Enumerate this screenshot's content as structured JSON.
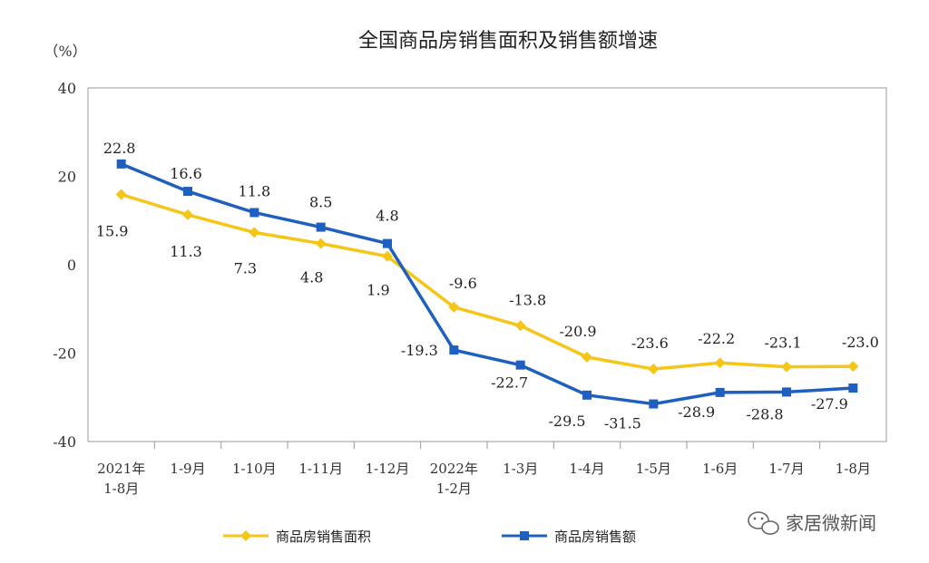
{
  "chart_data": {
    "type": "line",
    "title": "全国商品房销售面积及销售额增速",
    "ylabel": "（%）",
    "ylim": [
      -40,
      40
    ],
    "yticks": [
      40,
      20,
      0,
      -20,
      -40
    ],
    "categories": [
      [
        "2021年",
        "1-8月"
      ],
      [
        "1-9月"
      ],
      [
        "1-10月"
      ],
      [
        "1-11月"
      ],
      [
        "1-12月"
      ],
      [
        "2022年",
        "1-2月"
      ],
      [
        "1-3月"
      ],
      [
        "1-4月"
      ],
      [
        "1-5月"
      ],
      [
        "1-6月"
      ],
      [
        "1-7月"
      ],
      [
        "1-8月"
      ]
    ],
    "series": [
      {
        "name": "商品房销售面积",
        "color": "#F5C518",
        "marker": "diamond",
        "values": [
          15.9,
          11.3,
          7.3,
          4.8,
          1.9,
          -9.6,
          -13.8,
          -20.9,
          -23.6,
          -22.2,
          -23.1,
          -23.0
        ],
        "labels": [
          "15.9",
          "11.3",
          "7.3",
          "4.8",
          "1.9",
          "-9.6",
          "-13.8",
          "-20.9",
          "-23.6",
          "-22.2",
          "-23.1",
          "-23.0"
        ]
      },
      {
        "name": "商品房销售额",
        "color": "#1F5FBF",
        "marker": "square",
        "values": [
          22.8,
          16.6,
          11.8,
          8.5,
          4.8,
          -19.3,
          -22.7,
          -29.5,
          -31.5,
          -28.9,
          -28.8,
          -27.9
        ],
        "labels": [
          "22.8",
          "16.6",
          "11.8",
          "8.5",
          "4.8",
          "-19.3",
          "-22.7",
          "-29.5",
          "-31.5",
          "-28.9",
          "-28.8",
          "-27.9"
        ]
      }
    ],
    "legend": "bottom"
  },
  "watermark": {
    "text": "家居微新闻",
    "icon": "wechat-icon"
  }
}
